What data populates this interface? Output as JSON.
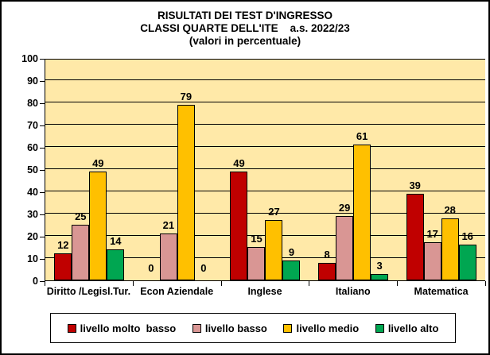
{
  "title": {
    "line1": "RISULTATI DEI TEST D'INGRESSO",
    "line2": "CLASSI QUARTE DELL'ITE    a.s. 2022/23",
    "line3": "(valori in percentuale)"
  },
  "colors": {
    "plot_background": "#FFE9A8",
    "gridline": "#000000",
    "frame_border": "#000000"
  },
  "chart_data": {
    "type": "bar",
    "title": "RISULTATI DEI TEST D'INGRESSO CLASSI QUARTE DELL'ITE a.s. 2022/23 (valori in percentuale)",
    "categories": [
      "Diritto /Legisl.Tur.",
      "Econ Aziendale",
      "Inglese",
      "Italiano",
      "Matematica"
    ],
    "series": [
      {
        "name": "livello molto  basso",
        "color": "#C00000",
        "values": [
          12,
          0,
          49,
          8,
          39
        ]
      },
      {
        "name": "livello basso",
        "color": "#D99694",
        "values": [
          25,
          21,
          15,
          29,
          17
        ]
      },
      {
        "name": "livello medio",
        "color": "#FFC000",
        "values": [
          49,
          79,
          27,
          61,
          28
        ]
      },
      {
        "name": "livello alto",
        "color": "#00A651",
        "values": [
          14,
          0,
          9,
          3,
          16
        ]
      }
    ],
    "ylim": [
      0,
      100
    ],
    "yticks": [
      0,
      10,
      20,
      30,
      40,
      50,
      60,
      70,
      80,
      90,
      100
    ],
    "grid": true,
    "data_labels": true,
    "legend_position": "bottom",
    "xlabel": "",
    "ylabel": ""
  }
}
